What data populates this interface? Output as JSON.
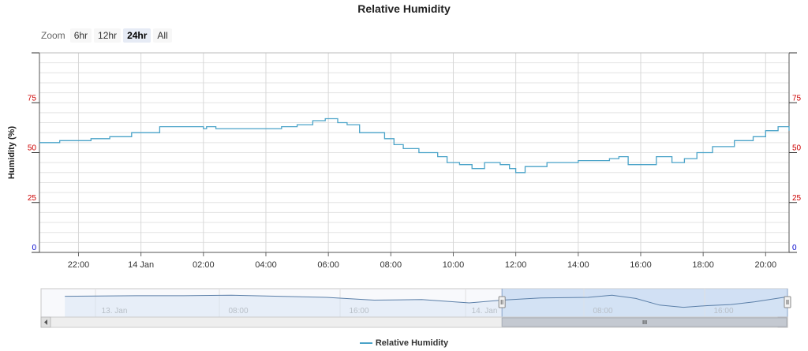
{
  "title": "Relative Humidity",
  "zoom": {
    "label": "Zoom",
    "buttons": [
      {
        "label": "6hr",
        "active": false
      },
      {
        "label": "12hr",
        "active": false
      },
      {
        "label": "24hr",
        "active": true
      },
      {
        "label": "All",
        "active": false
      }
    ]
  },
  "colors": {
    "series": "#4aa3c8",
    "tick_red": "#cc0000",
    "tick_blue": "#0000cc",
    "navigator_fill": "#bcd3f0",
    "grid": "#e3e3e3"
  },
  "legend": {
    "label": "Relative Humidity"
  },
  "chart_data": [
    {
      "type": "line",
      "title": "Relative Humidity",
      "ylabel": "Humidity (%)",
      "ylim": [
        0,
        100
      ],
      "y_ticks": [
        "0",
        "25",
        "50",
        "75"
      ],
      "y_ticks_right": [
        "0",
        "25",
        "50",
        "75"
      ],
      "x_ticks": [
        "22:00",
        "14 Jan",
        "02:00",
        "04:00",
        "06:00",
        "08:00",
        "10:00",
        "12:00",
        "14:00",
        "16:00",
        "18:00",
        "20:00"
      ],
      "xlim_hours": [
        -3.25,
        20.75
      ],
      "grid": true,
      "legend_position": "bottom-center",
      "series": [
        {
          "name": "Relative Humidity",
          "x_hours": [
            -3.25,
            -2.6,
            -1.9,
            -1.6,
            -1.0,
            -0.3,
            0.6,
            1.9,
            2.0,
            2.1,
            2.4,
            3.5,
            4.5,
            5.0,
            5.5,
            5.9,
            6.3,
            6.6,
            7.0,
            7.4,
            7.8,
            8.1,
            8.4,
            8.9,
            9.5,
            9.8,
            10.2,
            10.6,
            11.0,
            11.5,
            11.8,
            12.0,
            12.3,
            13.0,
            14.0,
            14.6,
            15.0,
            15.3,
            15.6,
            16.2,
            16.5,
            17.0,
            17.4,
            17.8,
            18.3,
            19.0,
            19.6,
            20.0,
            20.4,
            20.75
          ],
          "y": [
            55,
            56,
            56,
            57,
            58,
            60,
            63,
            63,
            62,
            63,
            62,
            62,
            63,
            64,
            66,
            67,
            65,
            64,
            60,
            60,
            57,
            54,
            52,
            50,
            48,
            45,
            44,
            42,
            45,
            44,
            42,
            40,
            43,
            45,
            46,
            46,
            47,
            48,
            44,
            44,
            48,
            45,
            47,
            50,
            53,
            56,
            58,
            61,
            63,
            61
          ]
        }
      ]
    },
    {
      "type": "area",
      "role": "navigator",
      "x_ticks": [
        "13. Jan",
        "08:00",
        "16:00",
        "14. Jan",
        "08:00",
        "16:00"
      ],
      "series": [
        {
          "x_hours": [
            -40,
            -34,
            -30,
            -26,
            -22,
            -18,
            -14,
            -10,
            -6,
            -3.25,
            0,
            4,
            6,
            8,
            10,
            12,
            14,
            16,
            18,
            20.75
          ],
          "y": [
            62,
            63,
            63,
            64,
            62,
            60,
            55,
            56,
            50,
            55,
            59,
            60,
            64,
            58,
            46,
            42,
            45,
            47,
            52,
            61
          ]
        }
      ],
      "selected_range_hours": [
        -3.25,
        20.75
      ]
    }
  ]
}
